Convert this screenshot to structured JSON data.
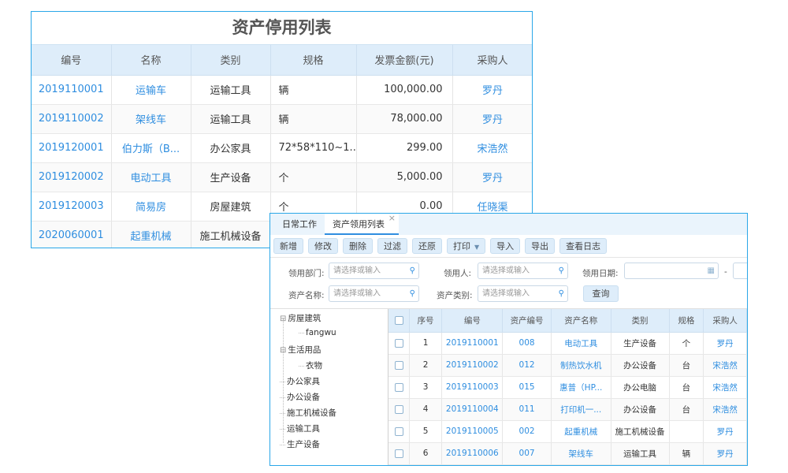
{
  "back_table": {
    "title": "资产停用列表",
    "headers": [
      "编号",
      "名称",
      "类别",
      "规格",
      "发票金额(元)",
      "采购人"
    ],
    "rows": [
      [
        "2019110001",
        "运输车",
        "运输工具",
        "辆",
        "100,000.00",
        "罗丹"
      ],
      [
        "2019110002",
        "架线车",
        "运输工具",
        "辆",
        "78,000.00",
        "罗丹"
      ],
      [
        "2019120001",
        "伯力斯（B...",
        "办公家具",
        "72*58*110~1...",
        "299.00",
        "宋浩然"
      ],
      [
        "2019120002",
        "电动工具",
        "生产设备",
        "个",
        "5,000.00",
        "罗丹"
      ],
      [
        "2019120003",
        "简易房",
        "房屋建筑",
        "个",
        "0.00",
        "任晓渠"
      ],
      [
        "2020060001",
        "起重机械",
        "施工机械设备",
        "",
        "",
        ""
      ]
    ]
  },
  "front": {
    "tabs": [
      {
        "label": "日常工作"
      },
      {
        "label": "资产领用列表",
        "close": "×"
      }
    ],
    "toolbar": [
      "新增",
      "修改",
      "删除",
      "过滤",
      "还原",
      "打印",
      "导入",
      "导出",
      "查看日志"
    ],
    "print_caret": "▼",
    "filters": {
      "dept_label": "领用部门:",
      "user_label": "领用人:",
      "date_label": "领用日期:",
      "name_label": "资产名称:",
      "type_label": "资产类别:",
      "placeholder": "请选择或输入",
      "date_sep": "-",
      "query": "查询"
    },
    "tree": {
      "items": [
        "房屋建筑",
        "fangwu",
        "生活用品",
        "衣物",
        "办公家具",
        "办公设备",
        "施工机械设备",
        "运输工具",
        "生产设备"
      ],
      "collapse_glyph": "⊟"
    },
    "table": {
      "headers": [
        "",
        "序号",
        "编号",
        "资产编号",
        "资产名称",
        "类别",
        "规格",
        "采购人"
      ],
      "rows": [
        [
          "1",
          "2019110001",
          "008",
          "电动工具",
          "生产设备",
          "个",
          "罗丹"
        ],
        [
          "2",
          "2019110002",
          "012",
          "制热饮水机",
          "办公设备",
          "台",
          "宋浩然"
        ],
        [
          "3",
          "2019110003",
          "015",
          "惠普（HP...",
          "办公电脑",
          "台",
          "宋浩然"
        ],
        [
          "4",
          "2019110004",
          "011",
          "打印机一...",
          "办公设备",
          "台",
          "宋浩然"
        ],
        [
          "5",
          "2019110005",
          "002",
          "起重机械",
          "施工机械设备",
          "",
          "罗丹"
        ],
        [
          "6",
          "2019110006",
          "007",
          "架线车",
          "运输工具",
          "辆",
          "罗丹"
        ]
      ]
    }
  },
  "colors": {
    "accent": "#2f8ee0",
    "border": "#2aa7e8",
    "header_bg": "#deedfa"
  }
}
